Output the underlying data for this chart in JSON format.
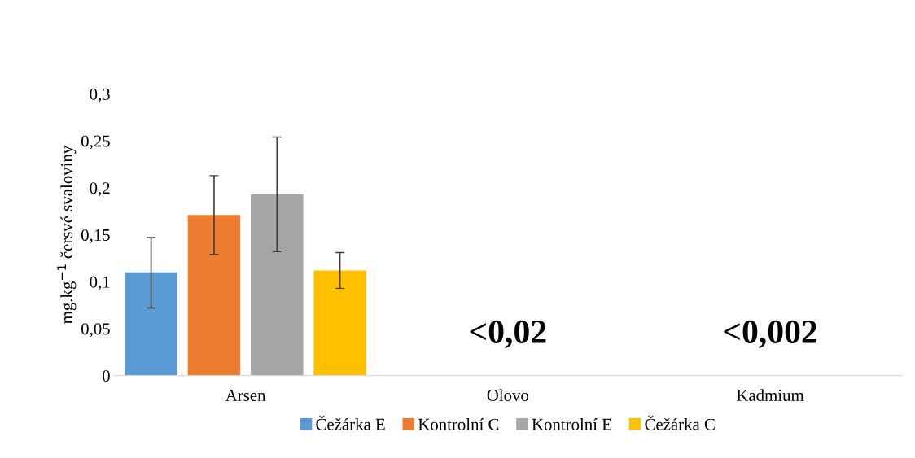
{
  "chart_data": {
    "type": "bar",
    "ylabel": "mg.kg$^{−1}$ čersvé svaloviny",
    "categories": [
      "Arsen",
      "Olovo",
      "Kadmium"
    ],
    "series": [
      {
        "name": "Čežárka E",
        "color": "#5b9bd5",
        "values": [
          0.11,
          null,
          null
        ],
        "errors": [
          [
            0.072,
            0.147
          ],
          null,
          null
        ]
      },
      {
        "name": "Kontrolní C",
        "color": "#ed7d31",
        "values": [
          0.171,
          null,
          null
        ],
        "errors": [
          [
            0.129,
            0.213
          ],
          null,
          null
        ]
      },
      {
        "name": "Kontrolní E",
        "color": "#a5a5a5",
        "values": [
          0.193,
          null,
          null
        ],
        "errors": [
          [
            0.132,
            0.254
          ],
          null,
          null
        ]
      },
      {
        "name": "Čežárka C",
        "color": "#ffc000",
        "values": [
          0.112,
          null,
          null
        ],
        "errors": [
          [
            0.093,
            0.131
          ],
          null,
          null
        ]
      }
    ],
    "ylim": [
      0,
      0.3
    ],
    "yticks": [
      0,
      {
        "value": 0.05,
        "label": "0,05"
      },
      {
        "value": 0.1,
        "label": "0,1"
      },
      {
        "value": 0.15,
        "label": "0,15"
      },
      {
        "value": 0.2,
        "label": "0,2"
      },
      {
        "value": 0.25,
        "label": "0,25"
      },
      {
        "value": 0.3,
        "label": "0,3"
      }
    ],
    "annotations": [
      "<0,02",
      "<0,002"
    ],
    "grid": false,
    "legend": "bottom"
  }
}
